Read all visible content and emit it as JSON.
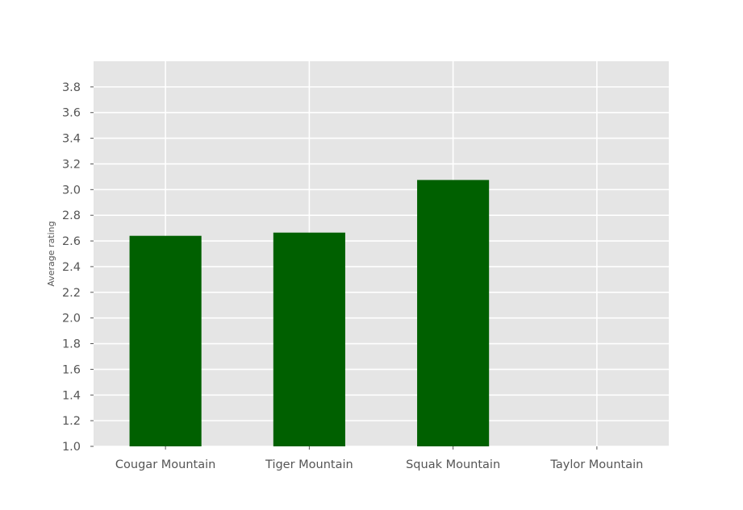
{
  "chart_data": {
    "type": "bar",
    "categories": [
      "Cougar Mountain",
      "Tiger Mountain",
      "Squak Mountain",
      "Taylor Mountain"
    ],
    "values": [
      2.64,
      2.665,
      3.075,
      null
    ],
    "title": "",
    "xlabel": "",
    "ylabel": "Average rating",
    "ylim": [
      1.0,
      4.0
    ],
    "yticks": [
      "1.0",
      "1.2",
      "1.4",
      "1.6",
      "1.8",
      "2.0",
      "2.2",
      "2.4",
      "2.6",
      "2.8",
      "3.0",
      "3.2",
      "3.4",
      "3.6",
      "3.8"
    ],
    "grid": true,
    "legend": "none",
    "colors": {
      "bar": "#006000",
      "plot_background": "#e5e5e5",
      "grid": "#ffffff",
      "text": "#555555"
    }
  }
}
